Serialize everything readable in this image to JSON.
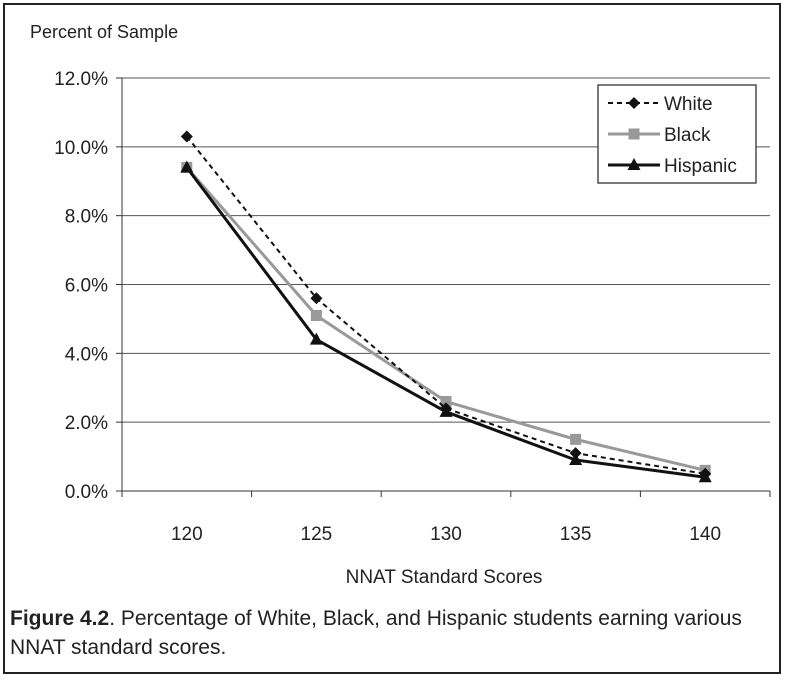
{
  "chart_data": {
    "type": "line",
    "ylabel": "Percent of Sample",
    "xlabel": "NNAT Standard Scores",
    "categories": [
      "120",
      "125",
      "130",
      "135",
      "140"
    ],
    "ylim": [
      0,
      12
    ],
    "yticks": [
      "0.0%",
      "2.0%",
      "4.0%",
      "6.0%",
      "8.0%",
      "10.0%",
      "12.0%"
    ],
    "grid": true,
    "legend_position": "top-right",
    "series": [
      {
        "name": "White",
        "values": [
          10.3,
          5.6,
          2.4,
          1.1,
          0.5
        ],
        "color": "#111111",
        "style": "dashed",
        "marker": "diamond"
      },
      {
        "name": "Black",
        "values": [
          9.4,
          5.1,
          2.6,
          1.5,
          0.6
        ],
        "color": "#999999",
        "style": "solid",
        "marker": "square"
      },
      {
        "name": "Hispanic",
        "values": [
          9.4,
          4.4,
          2.3,
          0.9,
          0.4
        ],
        "color": "#111111",
        "style": "solid",
        "marker": "triangle"
      }
    ]
  },
  "caption": {
    "label": "Figure 4.2",
    "text": ". Percentage of White, Black, and Hispanic students earning various NNAT standard scores."
  }
}
